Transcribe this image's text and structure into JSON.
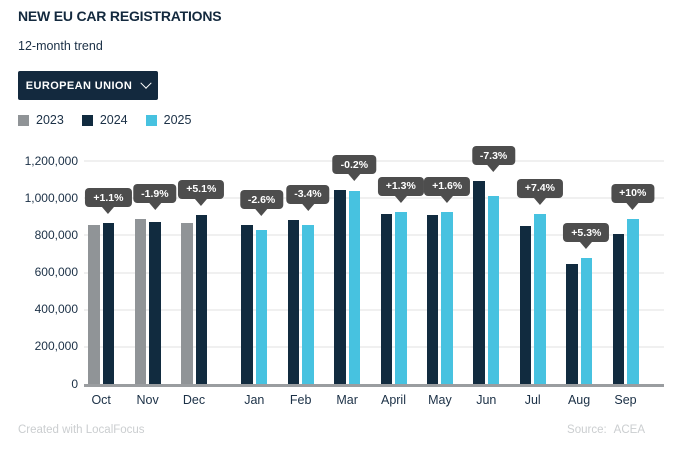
{
  "header": {
    "title": "NEW EU CAR REGISTRATIONS",
    "subtitle": "12-month trend",
    "dropdown": {
      "label": "EUROPEAN UNION",
      "icon": "chevron-down-icon"
    }
  },
  "legend": {
    "items": [
      {
        "label": "2023",
        "color": "#909497"
      },
      {
        "label": "2024",
        "color": "#112b3f"
      },
      {
        "label": "2025",
        "color": "#47c2e0"
      }
    ]
  },
  "chart_data": {
    "type": "bar",
    "title": "NEW EU CAR REGISTRATIONS",
    "subtitle": "12-month trend",
    "categories": [
      "Oct",
      "Nov",
      "Dec",
      "Jan",
      "Feb",
      "Mar",
      "April",
      "May",
      "Jun",
      "Jul",
      "Aug",
      "Sep"
    ],
    "series": [
      {
        "name": "2023",
        "color": "#909497",
        "values": [
          857000,
          887000,
          867000,
          null,
          null,
          null,
          null,
          null,
          null,
          null,
          null,
          null
        ]
      },
      {
        "name": "2024",
        "color": "#112b3f",
        "values": [
          866000,
          870000,
          911000,
          853000,
          884000,
          1042000,
          914000,
          912000,
          1090000,
          852000,
          644000,
          809000
        ]
      },
      {
        "name": "2025",
        "color": "#47c2e0",
        "values": [
          null,
          null,
          null,
          831000,
          854000,
          1040000,
          926000,
          927000,
          1011000,
          915000,
          678000,
          890000
        ]
      }
    ],
    "change_labels": [
      "+1.1%",
      "-1.9%",
      "+5.1%",
      "-2.6%",
      "-3.4%",
      "-0.2%",
      "+1.3%",
      "+1.6%",
      "-7.3%",
      "+7.4%",
      "+5.3%",
      "+10%"
    ],
    "y_ticks": [
      "0",
      "200,000",
      "400,000",
      "600,000",
      "800,000",
      "1,000,000",
      "1,200,000"
    ],
    "ylim": [
      0,
      1200000
    ],
    "grid": true,
    "legend_position": "top-left",
    "accent_colors": {
      "tooltip_bg": "#4d4d4d",
      "axis": "#9a9da0",
      "gridline": "#f0f0f0"
    }
  },
  "footer": {
    "credit": "Created with LocalFocus",
    "source_label": "Source:",
    "source_value": "ACEA"
  }
}
